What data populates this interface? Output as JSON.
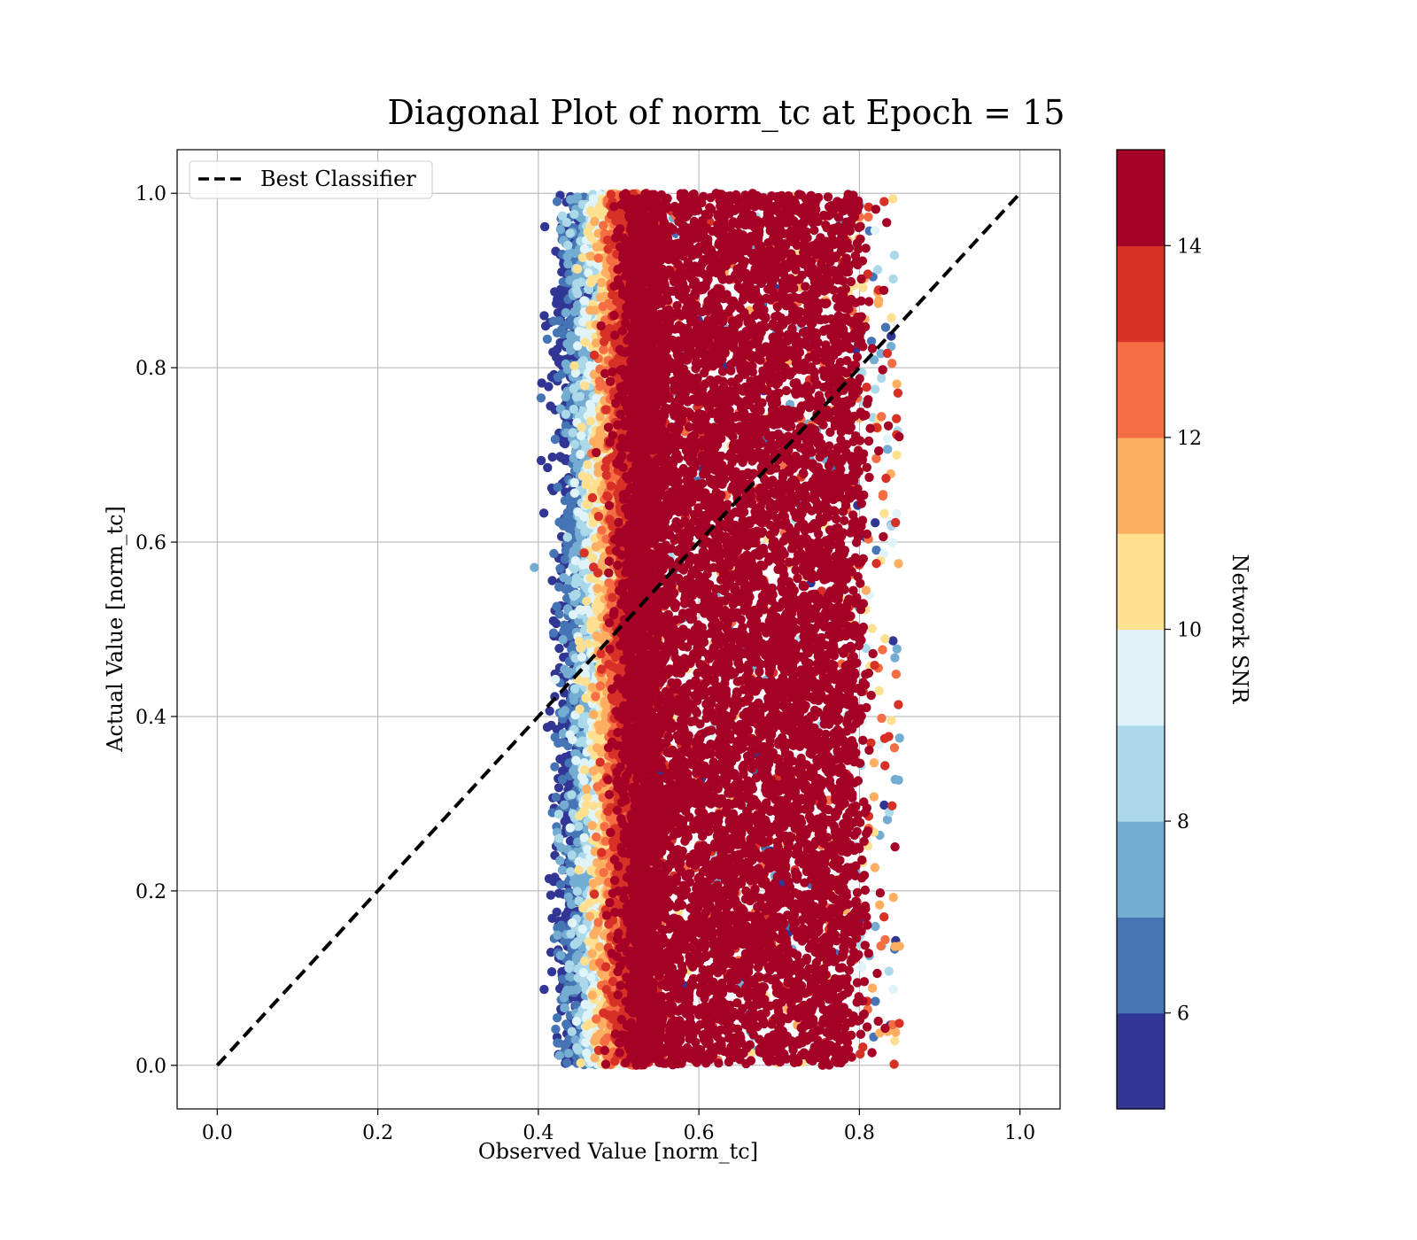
{
  "chart_data": {
    "type": "scatter",
    "title": "Diagonal Plot of norm_tc at Epoch = 15",
    "xlabel": "Observed Value [norm_tc]",
    "ylabel": "Actual Value [norm_tc]",
    "xlim": [
      -0.05,
      1.05
    ],
    "ylim": [
      -0.05,
      1.05
    ],
    "x_ticks": [
      "0.0",
      "0.2",
      "0.4",
      "0.6",
      "0.8",
      "1.0"
    ],
    "y_ticks": [
      "0.0",
      "0.2",
      "0.4",
      "0.6",
      "0.8",
      "1.0"
    ],
    "grid": true,
    "legend": {
      "placement": "upper-left",
      "entries": [
        {
          "label": "Best Classifier",
          "style": "black-dashed-line"
        }
      ]
    },
    "reference_line": {
      "label": "Best Classifier",
      "x": [
        0,
        1
      ],
      "y": [
        0,
        1
      ],
      "color": "#000000",
      "dash": true
    },
    "scatter_summary": {
      "x_range": [
        0.39,
        0.85
      ],
      "y_range": [
        0.0,
        1.0
      ],
      "bulk_x_range": [
        0.52,
        0.8
      ],
      "point_count_estimate": 20000,
      "color_variable": "Network SNR",
      "trend": "low-SNR points concentrate at x≈0.40–0.50, high-SNR points fill x≈0.52–0.80 uniformly in y"
    },
    "colorbar": {
      "label": "Network SNR",
      "range": [
        5,
        15
      ],
      "ticks": [
        "6",
        "8",
        "10",
        "12",
        "14"
      ],
      "tick_values": [
        6,
        8,
        10,
        12,
        14
      ],
      "colors": [
        "#313695",
        "#4575b4",
        "#74add1",
        "#abd9e9",
        "#e0f3f8",
        "#fee090",
        "#fdae61",
        "#f46d43",
        "#d73027",
        "#a50026"
      ]
    }
  }
}
